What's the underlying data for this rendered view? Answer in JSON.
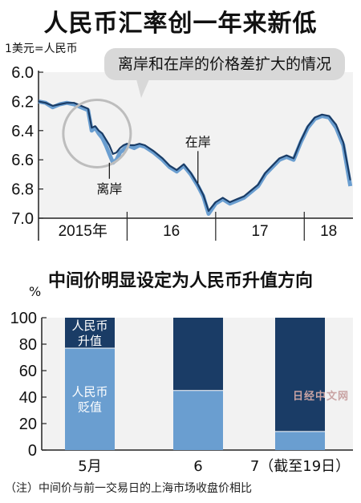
{
  "title": "人民币汇率创一年来新低",
  "chart_data": [
    {
      "type": "line",
      "unit_label": "1美元=人民币",
      "callout": "离岸和在岸的价格差扩大的情况",
      "yticks": [
        "6.0",
        "6.2",
        "6.4",
        "6.6",
        "6.8",
        "7.0"
      ],
      "ylim": [
        6.0,
        7.0
      ],
      "y_inverted": true,
      "xticks": [
        "2015年",
        "16",
        "17",
        "18"
      ],
      "series": [
        {
          "name": "离岸",
          "color": "#6a9ed0",
          "x": [
            2015.0,
            2015.08,
            2015.16,
            2015.24,
            2015.32,
            2015.4,
            2015.48,
            2015.56,
            2015.6,
            2015.64,
            2015.68,
            2015.72,
            2015.76,
            2015.8,
            2015.84,
            2015.88,
            2015.92,
            2015.96,
            2016.0,
            2016.04,
            2016.08,
            2016.14,
            2016.2,
            2016.3,
            2016.4,
            2016.48,
            2016.56,
            2016.64,
            2016.72,
            2016.8,
            2016.86,
            2016.92,
            2017.0,
            2017.08,
            2017.16,
            2017.24,
            2017.32,
            2017.4,
            2017.48,
            2017.56,
            2017.64,
            2017.72,
            2017.8,
            2017.88,
            2017.96,
            2018.04,
            2018.12,
            2018.2,
            2018.28,
            2018.36,
            2018.44,
            2018.52
          ],
          "values": [
            6.2,
            6.21,
            6.24,
            6.22,
            6.21,
            6.22,
            6.24,
            6.26,
            6.4,
            6.38,
            6.42,
            6.45,
            6.5,
            6.56,
            6.62,
            6.6,
            6.55,
            6.53,
            6.5,
            6.51,
            6.52,
            6.5,
            6.51,
            6.55,
            6.6,
            6.65,
            6.68,
            6.64,
            6.7,
            6.78,
            6.85,
            6.97,
            6.9,
            6.87,
            6.9,
            6.88,
            6.86,
            6.82,
            6.78,
            6.7,
            6.65,
            6.6,
            6.58,
            6.6,
            6.48,
            6.38,
            6.32,
            6.3,
            6.31,
            6.38,
            6.5,
            6.78
          ]
        },
        {
          "name": "在岸",
          "color": "#1a3c66",
          "x": [
            2015.0,
            2015.08,
            2015.16,
            2015.24,
            2015.32,
            2015.4,
            2015.48,
            2015.56,
            2015.6,
            2015.64,
            2015.68,
            2015.72,
            2015.76,
            2015.8,
            2015.84,
            2015.88,
            2015.92,
            2015.96,
            2016.0,
            2016.04,
            2016.08,
            2016.14,
            2016.2,
            2016.3,
            2016.4,
            2016.48,
            2016.56,
            2016.64,
            2016.72,
            2016.8,
            2016.86,
            2016.92,
            2017.0,
            2017.08,
            2017.16,
            2017.24,
            2017.32,
            2017.4,
            2017.48,
            2017.56,
            2017.64,
            2017.72,
            2017.8,
            2017.88,
            2017.96,
            2018.04,
            2018.12,
            2018.2,
            2018.28,
            2018.36,
            2018.44,
            2018.52
          ],
          "values": [
            6.2,
            6.21,
            6.23,
            6.22,
            6.21,
            6.21,
            6.23,
            6.25,
            6.38,
            6.37,
            6.4,
            6.42,
            6.46,
            6.5,
            6.56,
            6.55,
            6.52,
            6.5,
            6.49,
            6.5,
            6.5,
            6.49,
            6.5,
            6.54,
            6.59,
            6.64,
            6.67,
            6.63,
            6.69,
            6.77,
            6.84,
            6.95,
            6.89,
            6.86,
            6.89,
            6.87,
            6.85,
            6.81,
            6.77,
            6.69,
            6.64,
            6.59,
            6.57,
            6.59,
            6.47,
            6.37,
            6.31,
            6.29,
            6.3,
            6.36,
            6.48,
            6.74
          ]
        }
      ],
      "annotations": [
        "离岸",
        "在岸"
      ],
      "xlim": [
        2015.0,
        2018.55
      ]
    },
    {
      "type": "bar",
      "stacked": true,
      "title": "中间价明显设定为人民币升值方向",
      "unit_label": "%",
      "yticks": [
        "0",
        "20",
        "40",
        "60",
        "80",
        "100"
      ],
      "ylim": [
        0,
        100
      ],
      "categories": [
        "5月",
        "6",
        "7（截至19日）"
      ],
      "series": [
        {
          "name": "人民币贬值",
          "color": "#6a9ed0",
          "values": [
            77,
            45,
            14
          ]
        },
        {
          "name": "人民币升值",
          "color": "#1a3c66",
          "values": [
            23,
            55,
            86
          ]
        }
      ],
      "inbar_labels": {
        "top": [
          "人民币",
          "升值"
        ],
        "bottom": [
          "人民币",
          "贬值"
        ]
      }
    }
  ],
  "note": "（注）中间价与前一交易日的上海市场收盘价相比",
  "watermark": "日经中文网"
}
